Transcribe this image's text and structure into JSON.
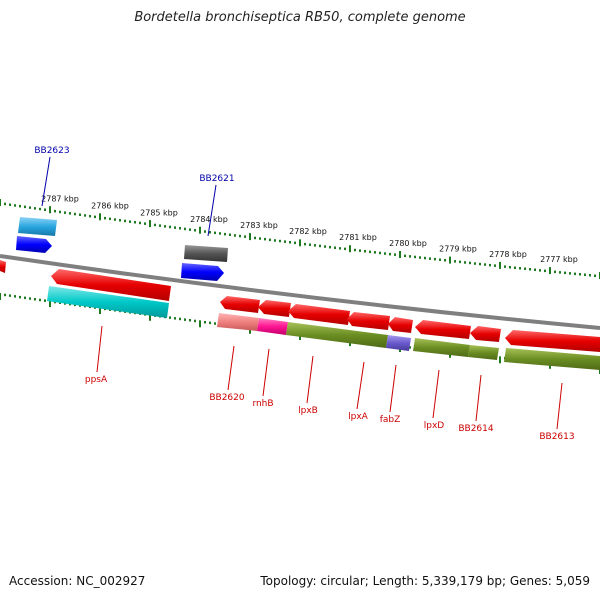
{
  "title": "Bordetella bronchiseptica RB50, complete genome",
  "accession": "Accession: NC_002927",
  "topology": "Topology: circular; Length: 5,339,179 bp; Genes: 5,059",
  "colors": {
    "backbone": "#7f7f7f",
    "tick": "#1f7a1f",
    "gene": "#e60000",
    "gene_label": "#cc0000",
    "blue_label": "#0000aa",
    "cyan": "#00c8c8",
    "lightblue": "#2aa7e0",
    "blue": "#0000ff",
    "gray": "#555555",
    "olive": "#6b8e23",
    "pink": "#f08080",
    "magenta": "#ff1493",
    "purple": "#6a5acd"
  },
  "scale": {
    "labels": [
      "2787 kbp",
      "2786 kbp",
      "2785 kbp",
      "2784 kbp",
      "2783 kbp",
      "2782 kbp",
      "2781 kbp",
      "2780 kbp",
      "2779 kbp",
      "2778 kbp",
      "2777 kbp"
    ]
  },
  "genes_bottom": [
    {
      "label": "ppsA"
    },
    {
      "label": "BB2620"
    },
    {
      "label": "rnhB"
    },
    {
      "label": "lpxB"
    },
    {
      "label": "lpxA"
    },
    {
      "label": "fabZ"
    },
    {
      "label": "lpxD"
    },
    {
      "label": "BB2614"
    },
    {
      "label": "BB2613"
    }
  ],
  "genes_top": [
    {
      "label": "BB2623"
    },
    {
      "label": "BB2621"
    }
  ]
}
